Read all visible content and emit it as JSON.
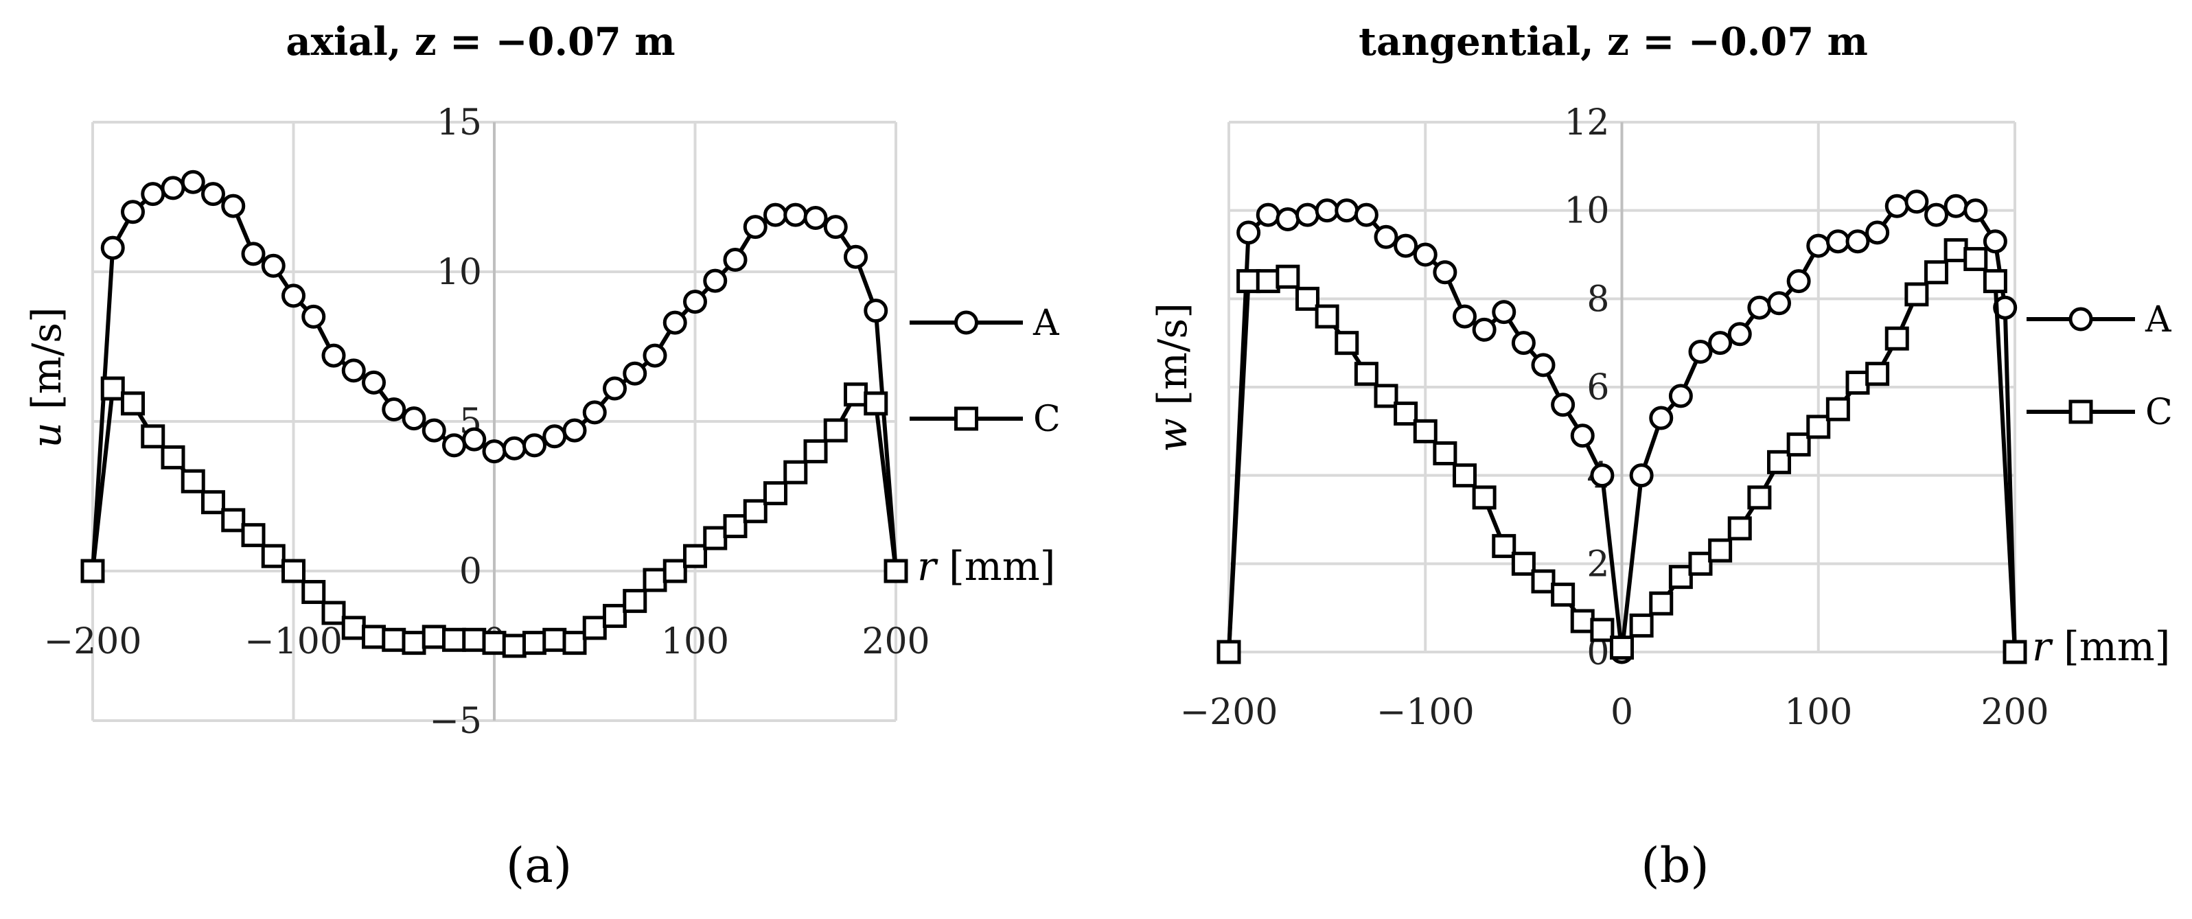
{
  "chart_data": [
    {
      "type": "line",
      "title": "axial, z = −0.07 m",
      "xlabel": "r [mm]",
      "ylabel_symbol": "u",
      "ylabel_unit": "[m/s]",
      "xlim": [
        -200,
        200
      ],
      "ylim": [
        -5,
        15
      ],
      "xticks": [
        -200,
        -100,
        0,
        100,
        200
      ],
      "xtick_labels": [
        "−200",
        "−100",
        "0",
        "100",
        "200"
      ],
      "yticks": [
        -5,
        0,
        5,
        10,
        15
      ],
      "ytick_labels": [
        "−5",
        "0",
        "5",
        "10",
        "15"
      ],
      "caption": "(a)",
      "x": [
        -200,
        -190,
        -180,
        -170,
        -160,
        -150,
        -140,
        -130,
        -120,
        -110,
        -100,
        -90,
        -80,
        -70,
        -60,
        -50,
        -40,
        -30,
        -20,
        -10,
        0,
        10,
        20,
        30,
        40,
        50,
        60,
        70,
        80,
        90,
        100,
        110,
        120,
        130,
        140,
        150,
        160,
        170,
        180,
        190,
        200
      ],
      "series": [
        {
          "name": "A",
          "marker": "circle",
          "values": [
            0,
            10.8,
            12,
            12.6,
            12.8,
            13,
            12.6,
            12.2,
            10.6,
            10.2,
            9.2,
            8.5,
            7.2,
            6.7,
            6.3,
            5.4,
            5.1,
            4.7,
            4.2,
            4.4,
            4.0,
            4.1,
            4.2,
            4.5,
            4.7,
            5.3,
            6.1,
            6.6,
            7.2,
            8.3,
            9.0,
            9.7,
            10.4,
            11.5,
            11.9,
            11.9,
            11.8,
            11.5,
            10.5,
            8.7,
            0
          ],
          "x_override": [
            -200,
            -190,
            -180,
            -170,
            -160,
            -150,
            -140,
            -130,
            -120,
            -110,
            -100,
            -90,
            -80,
            -70,
            -60,
            -50,
            -40,
            -30,
            -20,
            -10,
            0,
            10,
            20,
            30,
            40,
            50,
            60,
            70,
            80,
            90,
            100,
            110,
            120,
            130,
            140,
            150,
            160,
            170,
            180,
            190,
            200
          ]
        },
        {
          "name": "C",
          "marker": "square",
          "values": [
            0,
            6.1,
            5.6,
            4.5,
            3.8,
            3.0,
            2.3,
            1.7,
            1.2,
            0.5,
            0.0,
            -0.7,
            -1.4,
            -1.9,
            -2.2,
            -2.3,
            -2.4,
            -2.2,
            -2.3,
            -2.3,
            -2.4,
            -2.5,
            -2.4,
            -2.3,
            -2.4,
            -1.9,
            -1.5,
            -1.0,
            -0.3,
            0.0,
            0.5,
            1.1,
            1.5,
            2.0,
            2.6,
            3.3,
            4.0,
            4.7,
            5.9,
            5.6,
            0
          ],
          "x_override": [
            -200,
            -190,
            -180,
            -170,
            -160,
            -150,
            -140,
            -130,
            -120,
            -110,
            -100,
            -90,
            -80,
            -70,
            -60,
            -50,
            -40,
            -30,
            -20,
            -10,
            0,
            10,
            20,
            30,
            40,
            50,
            60,
            70,
            80,
            90,
            100,
            110,
            120,
            130,
            140,
            150,
            160,
            170,
            180,
            190,
            200
          ]
        }
      ]
    },
    {
      "type": "line",
      "title": "tangential, z = −0.07 m",
      "xlabel": "r [mm]",
      "ylabel_symbol": "w",
      "ylabel_unit": "[m/s]",
      "xlim": [
        -200,
        200
      ],
      "ylim": [
        0,
        12
      ],
      "xticks": [
        -200,
        -100,
        0,
        100,
        200
      ],
      "xtick_labels": [
        "−200",
        "−100",
        "0",
        "100",
        "200"
      ],
      "yticks": [
        0,
        2,
        4,
        6,
        8,
        10,
        12
      ],
      "ytick_labels": [
        "0",
        "2",
        "4",
        "6",
        "8",
        "10",
        "12"
      ],
      "caption": "(b)",
      "series": [
        {
          "name": "A",
          "marker": "circle",
          "x": [
            -200,
            -190,
            -180,
            -170,
            -160,
            -150,
            -140,
            -130,
            -120,
            -110,
            -100,
            -90,
            -80,
            -70,
            -60,
            -50,
            -40,
            -30,
            -20,
            -10,
            0,
            10,
            20,
            30,
            40,
            50,
            60,
            70,
            80,
            90,
            100,
            110,
            120,
            130,
            140,
            150,
            160,
            170,
            180,
            190,
            195,
            200
          ],
          "values": [
            0,
            9.5,
            9.9,
            9.8,
            9.9,
            10.0,
            10.0,
            9.9,
            9.4,
            9.2,
            9.0,
            8.6,
            7.6,
            7.3,
            7.7,
            7.0,
            6.5,
            5.6,
            4.9,
            4.0,
            0,
            4.0,
            5.3,
            5.8,
            6.8,
            7.0,
            7.2,
            7.8,
            7.9,
            8.4,
            9.2,
            9.3,
            9.3,
            9.5,
            10.1,
            10.2,
            9.9,
            10.1,
            10.0,
            9.3,
            7.8,
            0
          ]
        },
        {
          "name": "C",
          "marker": "square",
          "x": [
            -200,
            -190,
            -180,
            -170,
            -160,
            -150,
            -140,
            -130,
            -120,
            -110,
            -100,
            -90,
            -80,
            -70,
            -60,
            -50,
            -40,
            -30,
            -20,
            -10,
            0,
            10,
            20,
            30,
            40,
            50,
            60,
            70,
            80,
            90,
            100,
            110,
            120,
            130,
            140,
            150,
            160,
            170,
            180,
            190,
            200
          ],
          "values": [
            0,
            8.4,
            8.4,
            8.5,
            8.0,
            7.6,
            7.0,
            6.3,
            5.8,
            5.4,
            5.0,
            4.5,
            4.0,
            3.5,
            2.4,
            2.0,
            1.6,
            1.3,
            0.7,
            0.5,
            0.1,
            0.6,
            1.1,
            1.7,
            2.0,
            2.3,
            2.8,
            3.5,
            4.3,
            4.7,
            5.1,
            5.5,
            6.1,
            6.3,
            7.1,
            8.1,
            8.6,
            9.1,
            8.9,
            8.4,
            0
          ]
        }
      ]
    }
  ]
}
